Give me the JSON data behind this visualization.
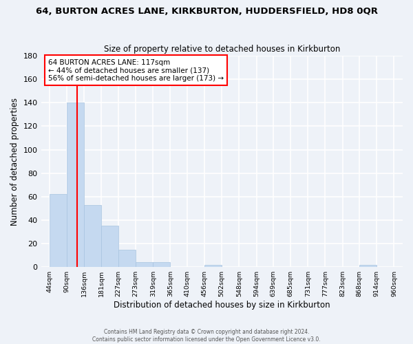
{
  "title1": "64, BURTON ACRES LANE, KIRKBURTON, HUDDERSFIELD, HD8 0QR",
  "title2": "Size of property relative to detached houses in Kirkburton",
  "xlabel": "Distribution of detached houses by size in Kirkburton",
  "ylabel": "Number of detached properties",
  "bin_edges": [
    44,
    90,
    136,
    181,
    227,
    273,
    319,
    365,
    410,
    456,
    502,
    548,
    594,
    639,
    685,
    731,
    777,
    823,
    868,
    914,
    960
  ],
  "bin_counts": [
    62,
    140,
    53,
    35,
    15,
    4,
    4,
    0,
    0,
    2,
    0,
    0,
    0,
    0,
    0,
    0,
    0,
    0,
    2,
    0
  ],
  "bar_color": "#c5d9f0",
  "bar_edge_color": "#a8c4e0",
  "red_line_x": 117,
  "annotation_line1": "64 BURTON ACRES LANE: 117sqm",
  "annotation_line2": "← 44% of detached houses are smaller (137)",
  "annotation_line3": "56% of semi-detached houses are larger (173) →",
  "ylim": [
    0,
    180
  ],
  "yticks": [
    0,
    20,
    40,
    60,
    80,
    100,
    120,
    140,
    160,
    180
  ],
  "background_color": "#eef2f8",
  "grid_color": "#ffffff",
  "footer": "Contains HM Land Registry data © Crown copyright and database right 2024.\nContains public sector information licensed under the Open Government Licence v3.0."
}
